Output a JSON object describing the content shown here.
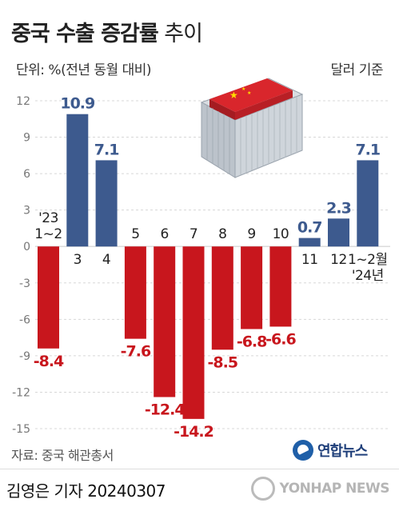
{
  "header": {
    "title_bold": "중국 수출 증감률",
    "title_light": "추이",
    "unit": "단위: %(전년 동월 대비)",
    "basis": "달러 기준"
  },
  "footer": {
    "source": "자료: 중국 해관총서",
    "logo_text": "연합뉴스",
    "credit": "김영은 기자  20240307",
    "watermark_text": "YONHAP NEWS"
  },
  "colors": {
    "positive": "#3d5a8e",
    "negative": "#c8161d",
    "positive_label": "#3d5a8e",
    "negative_label": "#c8161d",
    "grid": "#d8d8d8"
  },
  "chart_data": {
    "type": "bar",
    "categories": [
      "'23\n1~2",
      "3",
      "4",
      "5",
      "6",
      "7",
      "8",
      "9",
      "10",
      "11",
      "12",
      "1~2월\n'24년"
    ],
    "values": [
      -8.4,
      10.9,
      7.1,
      -7.6,
      -12.4,
      -14.2,
      -8.5,
      -6.8,
      -6.6,
      0.7,
      2.3,
      7.1
    ],
    "value_labels": [
      "-8.4",
      "10.9",
      "7.1",
      "-7.6",
      "-12.4",
      "-14.2",
      "-8.5",
      "-6.8",
      "-6.6",
      "0.7",
      "2.3",
      "7.1"
    ],
    "yticks": [
      "12",
      "9",
      "6",
      "3",
      "0",
      "-3",
      "-6",
      "-9",
      "-12",
      "-15"
    ],
    "ylim": [
      -15,
      12
    ],
    "title": "중국 수출 증감률 추이",
    "ylabel": "단위: %(전년 동월 대비)",
    "grid": true
  }
}
